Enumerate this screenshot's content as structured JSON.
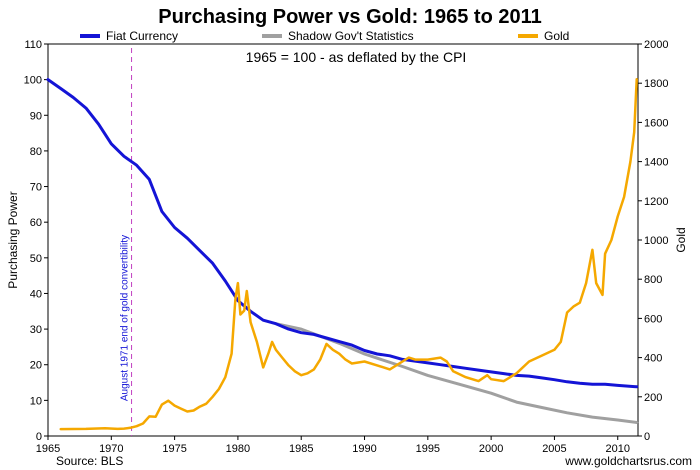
{
  "chart_data": {
    "type": "line",
    "title": "Purchasing Power vs Gold: 1965 to 2011",
    "subtitle": "1965 = 100 - as deflated by the CPI",
    "ylabel_left": "Purchasing Power",
    "ylabel_right": "Gold",
    "source": "Source: BLS",
    "credit": "www.goldchartsrus.com",
    "annotation": "August 1971 end of gold convertibility",
    "annotation_x": 1971.6,
    "xlim": [
      1965,
      2011.6
    ],
    "ylim_left": [
      0,
      110
    ],
    "ylim_right": [
      0,
      2000
    ],
    "x_ticks": [
      "1965",
      "1970",
      "1975",
      "1980",
      "1985",
      "1990",
      "1995",
      "2000",
      "2005",
      "2010"
    ],
    "y_ticks_left": [
      "0",
      "10",
      "20",
      "30",
      "40",
      "50",
      "60",
      "70",
      "80",
      "90",
      "100",
      "110"
    ],
    "y_ticks_right": [
      "0",
      "200",
      "400",
      "600",
      "800",
      "1000",
      "1200",
      "1400",
      "1600",
      "1800",
      "2000"
    ],
    "legend_placement": "top",
    "grid": false,
    "colors": {
      "fiat": "#1414d6",
      "shadow": "#a0a0a0",
      "gold": "#f5a800",
      "annotation": "#c040c0",
      "annotation_text": "#1414d6"
    },
    "series": [
      {
        "name": "Fiat Currency",
        "axis": "left",
        "x": [
          1965,
          1966,
          1967,
          1968,
          1969,
          1970,
          1971,
          1972,
          1973,
          1974,
          1975,
          1976,
          1977,
          1978,
          1979,
          1980,
          1981,
          1982,
          1983,
          1984,
          1985,
          1986,
          1987,
          1988,
          1989,
          1990,
          1991,
          1992,
          1993,
          1994,
          1995,
          1996,
          1997,
          1998,
          1999,
          2000,
          2001,
          2002,
          2003,
          2004,
          2005,
          2006,
          2007,
          2008,
          2009,
          2010,
          2011.5
        ],
        "values": [
          100,
          97.5,
          95,
          92,
          87.5,
          82,
          78.5,
          76,
          72,
          63,
          58.5,
          55.5,
          52,
          48.5,
          43.5,
          38,
          35,
          32.5,
          31.5,
          30,
          29,
          28.5,
          27.5,
          26.5,
          25.5,
          24,
          23,
          22.5,
          21.5,
          21,
          20.5,
          20,
          19.5,
          19,
          18.5,
          18,
          17.5,
          17,
          16.8,
          16.3,
          15.8,
          15.2,
          14.8,
          14.5,
          14.5,
          14.2,
          13.8
        ]
      },
      {
        "name": "Shadow Gov't Statistics",
        "axis": "left",
        "x": [
          1983,
          1985,
          1988,
          1990,
          1993,
          1995,
          1998,
          2000,
          2002,
          2004,
          2006,
          2008,
          2010,
          2011.5
        ],
        "values": [
          31.5,
          30,
          26,
          23,
          19.5,
          17,
          14,
          12,
          9.5,
          8,
          6.5,
          5.3,
          4.5,
          3.8
        ]
      },
      {
        "name": "Gold",
        "axis": "right",
        "x": [
          1966,
          1968,
          1969.5,
          1970.5,
          1971,
          1971.5,
          1972,
          1972.5,
          1973,
          1973.5,
          1974,
          1974.5,
          1975,
          1975.5,
          1976,
          1976.5,
          1977,
          1977.5,
          1978,
          1978.5,
          1979,
          1979.5,
          1979.8,
          1980,
          1980.2,
          1980.5,
          1980.7,
          1981,
          1981.5,
          1982,
          1982.4,
          1982.7,
          1983,
          1983.5,
          1984,
          1984.5,
          1985,
          1985.5,
          1986,
          1986.5,
          1987,
          1987.5,
          1988,
          1988.5,
          1989,
          1990,
          1991,
          1992,
          1993,
          1993.5,
          1994,
          1995,
          1996,
          1996.5,
          1997,
          1998,
          1999,
          1999.7,
          2000,
          2001,
          2002,
          2003,
          2004,
          2005,
          2005.5,
          2006,
          2006.5,
          2007,
          2007.5,
          2008,
          2008.3,
          2008.8,
          2009,
          2009.5,
          2010,
          2010.5,
          2011,
          2011.3,
          2011.5
        ],
        "values": [
          35,
          36,
          40,
          36,
          38,
          42,
          50,
          64,
          100,
          98,
          160,
          180,
          155,
          140,
          125,
          130,
          150,
          165,
          200,
          240,
          300,
          420,
          700,
          780,
          620,
          640,
          740,
          580,
          480,
          350,
          420,
          480,
          440,
          400,
          360,
          330,
          310,
          320,
          340,
          390,
          470,
          440,
          420,
          390,
          370,
          380,
          360,
          340,
          380,
          400,
          390,
          390,
          400,
          380,
          330,
          300,
          280,
          310,
          290,
          280,
          320,
          380,
          410,
          440,
          480,
          630,
          660,
          680,
          780,
          950,
          780,
          720,
          930,
          1000,
          1120,
          1220,
          1400,
          1550,
          1820
        ]
      }
    ]
  }
}
